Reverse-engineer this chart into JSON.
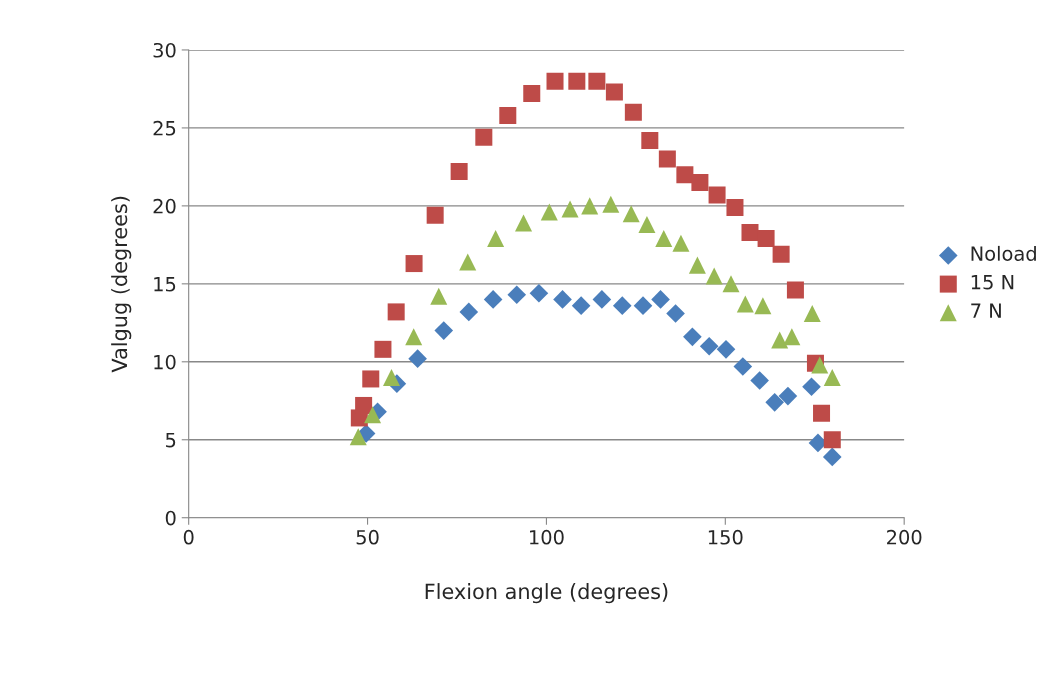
{
  "chart_data": {
    "type": "scatter",
    "xlabel": "Flexion angle (degrees)",
    "ylabel": "Valgug (degrees)",
    "xlim": [
      0,
      200
    ],
    "xticks": [
      0,
      50,
      100,
      150,
      200
    ],
    "ylim": [
      0,
      30
    ],
    "yticks": [
      0,
      5,
      10,
      15,
      20,
      25,
      30
    ],
    "grid": "y",
    "legend": "right",
    "series": [
      {
        "name": "Noload",
        "color": "#4a7ebb",
        "marker": "diamond",
        "x": [
          49.6,
          52.8,
          58.2,
          64.0,
          71.3,
          78.3,
          85.1,
          91.7,
          97.9,
          104.5,
          109.7,
          115.5,
          121.2,
          127.0,
          131.9,
          136.1,
          140.8,
          145.5,
          150.2,
          154.9,
          159.6,
          163.8,
          167.5,
          174.1,
          175.9,
          179.9
        ],
        "values": [
          5.4,
          6.8,
          8.6,
          10.2,
          12.0,
          13.2,
          14.0,
          14.3,
          14.4,
          14.0,
          13.6,
          14.0,
          13.6,
          13.6,
          14.0,
          13.1,
          11.6,
          11.0,
          10.8,
          9.7,
          8.8,
          7.4,
          7.8,
          8.4,
          4.8,
          3.9
        ]
      },
      {
        "name": "15 N",
        "color": "#be4b48",
        "marker": "square",
        "x": [
          47.7,
          48.9,
          50.9,
          54.3,
          58.0,
          63.0,
          68.9,
          75.6,
          82.5,
          89.2,
          95.9,
          102.4,
          108.5,
          114.1,
          119.0,
          124.3,
          128.9,
          133.8,
          138.7,
          142.9,
          147.7,
          152.7,
          156.9,
          161.4,
          165.6,
          169.6,
          175.2,
          176.9,
          179.9
        ],
        "values": [
          6.4,
          7.2,
          8.9,
          10.8,
          13.2,
          16.3,
          19.4,
          22.2,
          24.4,
          25.8,
          27.2,
          28.0,
          28.0,
          28.0,
          27.3,
          26.0,
          24.2,
          23.0,
          22.0,
          21.5,
          20.7,
          19.9,
          18.3,
          17.9,
          16.9,
          14.6,
          9.9,
          6.7,
          5.0
        ]
      },
      {
        "name": "7 N",
        "color": "#98b954",
        "marker": "triangle",
        "x": [
          47.4,
          51.4,
          56.7,
          62.9,
          69.9,
          78.0,
          85.8,
          93.6,
          100.8,
          106.6,
          112.1,
          118.0,
          123.7,
          128.1,
          132.8,
          137.6,
          142.2,
          146.9,
          151.6,
          155.6,
          160.5,
          165.2,
          168.6,
          174.3,
          176.4,
          179.9
        ],
        "values": [
          5.2,
          6.6,
          9.0,
          11.6,
          14.2,
          16.4,
          17.9,
          18.9,
          19.6,
          19.8,
          20.0,
          20.1,
          19.5,
          18.8,
          17.9,
          17.6,
          16.2,
          15.5,
          15.0,
          13.7,
          13.6,
          11.4,
          11.6,
          13.1,
          9.8,
          9.0
        ]
      }
    ]
  }
}
